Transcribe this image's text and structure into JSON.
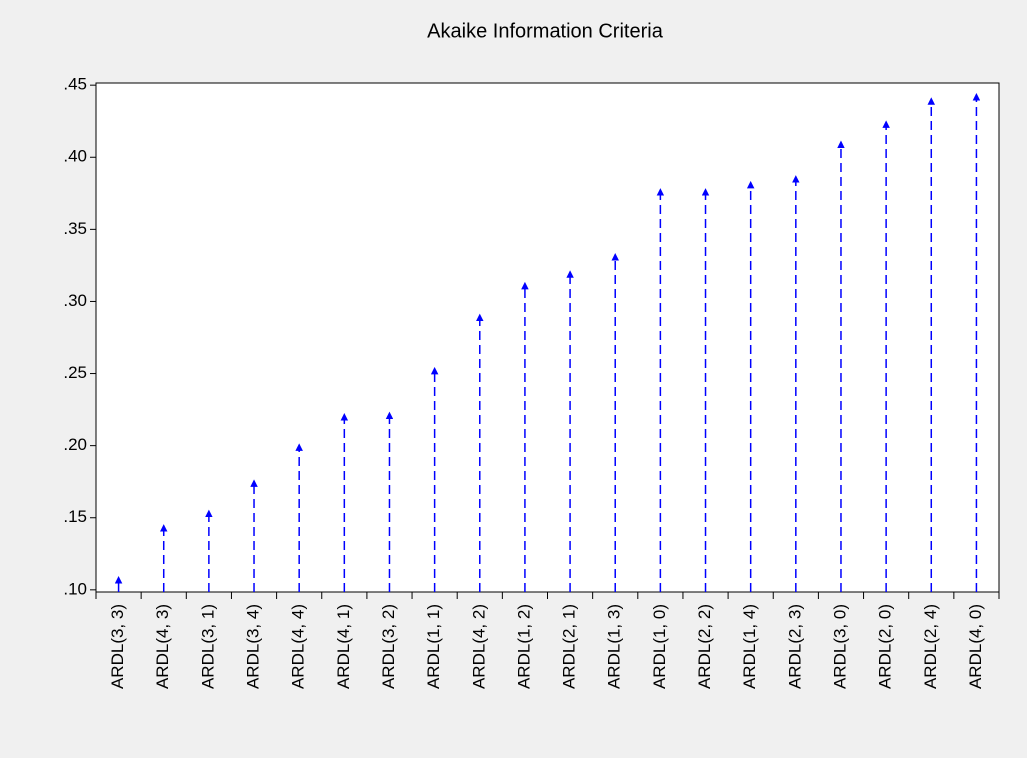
{
  "chart_data": {
    "type": "stem",
    "title": "Akaike Information Criteria",
    "categories": [
      "ARDL(3, 3)",
      "ARDL(4, 3)",
      "ARDL(3, 1)",
      "ARDL(3, 4)",
      "ARDL(4, 4)",
      "ARDL(4, 1)",
      "ARDL(3, 2)",
      "ARDL(1, 1)",
      "ARDL(4, 2)",
      "ARDL(1, 2)",
      "ARDL(2, 1)",
      "ARDL(1, 3)",
      "ARDL(1, 0)",
      "ARDL(2, 2)",
      "ARDL(1, 4)",
      "ARDL(2, 3)",
      "ARDL(3, 0)",
      "ARDL(2, 0)",
      "ARDL(2, 4)",
      "ARDL(4, 0)"
    ],
    "values": [
      0.107,
      0.143,
      0.153,
      0.174,
      0.199,
      0.22,
      0.221,
      0.252,
      0.289,
      0.311,
      0.319,
      0.331,
      0.376,
      0.376,
      0.381,
      0.385,
      0.409,
      0.423,
      0.439,
      0.442
    ],
    "color": "#0000ff",
    "ylim": [
      0.0985,
      0.4515
    ],
    "yticks": [
      {
        "value": 0.1,
        "label": ".10"
      },
      {
        "value": 0.15,
        "label": ".15"
      },
      {
        "value": 0.2,
        "label": ".20"
      },
      {
        "value": 0.25,
        "label": ".25"
      },
      {
        "value": 0.3,
        "label": ".30"
      },
      {
        "value": 0.35,
        "label": ".35"
      },
      {
        "value": 0.4,
        "label": ".40"
      },
      {
        "value": 0.45,
        "label": ".45"
      }
    ],
    "grid": false
  }
}
